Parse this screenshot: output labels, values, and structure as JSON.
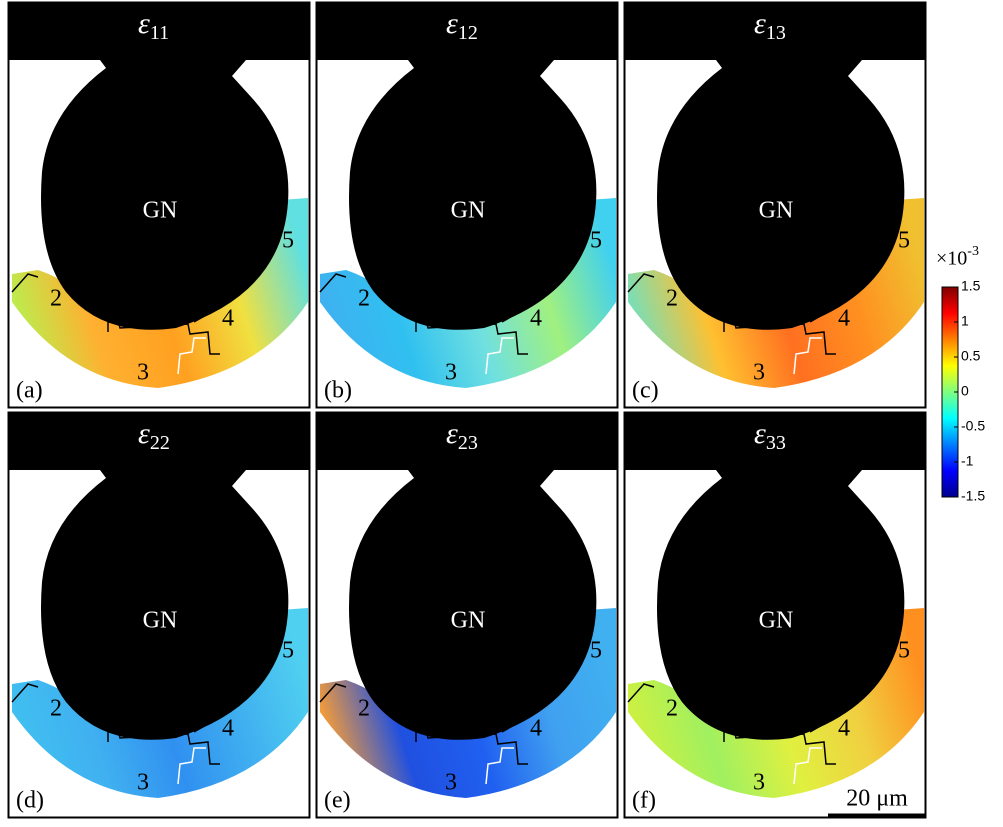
{
  "panels": [
    {
      "symbol": "ε",
      "subscript": "11",
      "label": "(a)",
      "center": "GN",
      "grains": [
        "2",
        "3",
        "4",
        "5"
      ],
      "colors": [
        "#b8f050",
        "#ffb030",
        "#ffa020",
        "#f0e040",
        "#60e0e0"
      ]
    },
    {
      "symbol": "ε",
      "subscript": "12",
      "label": "(b)",
      "center": "GN",
      "grains": [
        "2",
        "3",
        "4",
        "5"
      ],
      "colors": [
        "#40b0f0",
        "#30c0f0",
        "#70e0e0",
        "#a0f080",
        "#40d0f0"
      ]
    },
    {
      "symbol": "ε",
      "subscript": "13",
      "label": "(c)",
      "center": "GN",
      "grains": [
        "2",
        "3",
        "4",
        "5"
      ],
      "colors": [
        "#70e0c0",
        "#ffc030",
        "#ff7020",
        "#ff9020",
        "#f0c030"
      ]
    },
    {
      "symbol": "ε",
      "subscript": "22",
      "label": "(d)",
      "center": "GN",
      "grains": [
        "2",
        "3",
        "4",
        "5"
      ],
      "colors": [
        "#40c0f0",
        "#40b0f0",
        "#3090f0",
        "#40b0f0",
        "#50d0f0"
      ]
    },
    {
      "symbol": "ε",
      "subscript": "23",
      "label": "(e)",
      "center": "GN",
      "grains": [
        "2",
        "3",
        "4",
        "5"
      ],
      "colors": [
        "#ffa030",
        "#2050e0",
        "#2060f0",
        "#40a0f0",
        "#40b0f0"
      ]
    },
    {
      "symbol": "ε",
      "subscript": "33",
      "label": "(f)",
      "center": "GN",
      "grains": [
        "2",
        "3",
        "4",
        "5"
      ],
      "colors": [
        "#d0f040",
        "#a0f060",
        "#e0f040",
        "#f0d040",
        "#ff9020"
      ]
    }
  ],
  "colorbar": {
    "factor": "×10",
    "exponent": "-3",
    "lim": [
      -1.5,
      1.5
    ],
    "ticks": [
      1.5,
      1,
      0.5,
      0,
      -0.5,
      -1,
      -1.5
    ]
  },
  "scale_bar": "20 μm"
}
